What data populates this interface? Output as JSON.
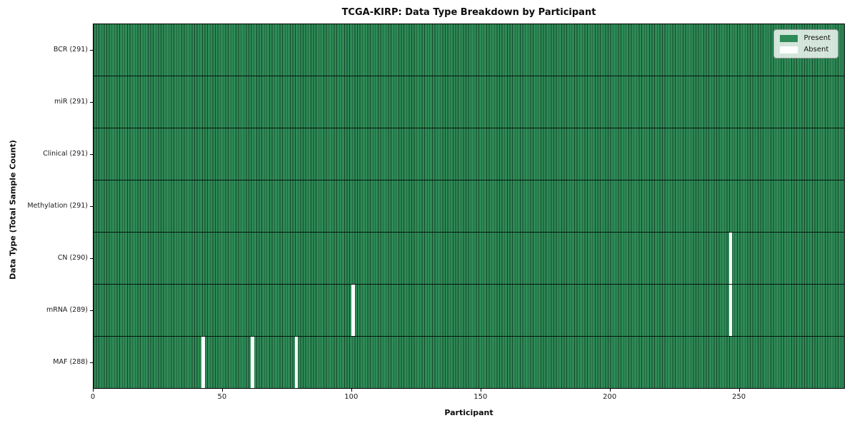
{
  "figure": {
    "title": "TCGA-KIRP: Data Type Breakdown by Participant",
    "xlabel": "Participant",
    "ylabel": "Data Type (Total Sample Count)"
  },
  "legend": {
    "position": "upper right",
    "items": [
      {
        "label": "Present",
        "color": "#2e8b57"
      },
      {
        "label": "Absent",
        "color": "#ffffff"
      }
    ]
  },
  "chart_data": {
    "type": "heatmap",
    "title": "TCGA-KIRP: Data Type Breakdown by Participant",
    "xlabel": "Participant",
    "ylabel": "Data Type (Total Sample Count)",
    "xlim": [
      0,
      291
    ],
    "x_ticks": [
      0,
      50,
      100,
      150,
      200,
      250
    ],
    "n_participants": 291,
    "grid": false,
    "legend_position": "upper right",
    "colors": {
      "present": "#2e8b57",
      "absent": "#ffffff",
      "cell_border": "rgba(0,0,0,0.5)",
      "row_divider": "#000000"
    },
    "rows": [
      {
        "name": "BCR",
        "label": "BCR (291)",
        "present_count": 291,
        "absent_participants": []
      },
      {
        "name": "miR",
        "label": "miR (291)",
        "present_count": 291,
        "absent_participants": []
      },
      {
        "name": "Clinical",
        "label": "Clinical (291)",
        "present_count": 291,
        "absent_participants": []
      },
      {
        "name": "Methylation",
        "label": "Methylation (291)",
        "present_count": 291,
        "absent_participants": []
      },
      {
        "name": "CN",
        "label": "CN (290)",
        "present_count": 290,
        "absent_participants": [
          246
        ]
      },
      {
        "name": "mRNA",
        "label": "mRNA (289)",
        "present_count": 289,
        "absent_participants": [
          100,
          246
        ]
      },
      {
        "name": "MAF",
        "label": "MAF (288)",
        "present_count": 288,
        "absent_participants": [
          42,
          61,
          78
        ]
      }
    ]
  }
}
